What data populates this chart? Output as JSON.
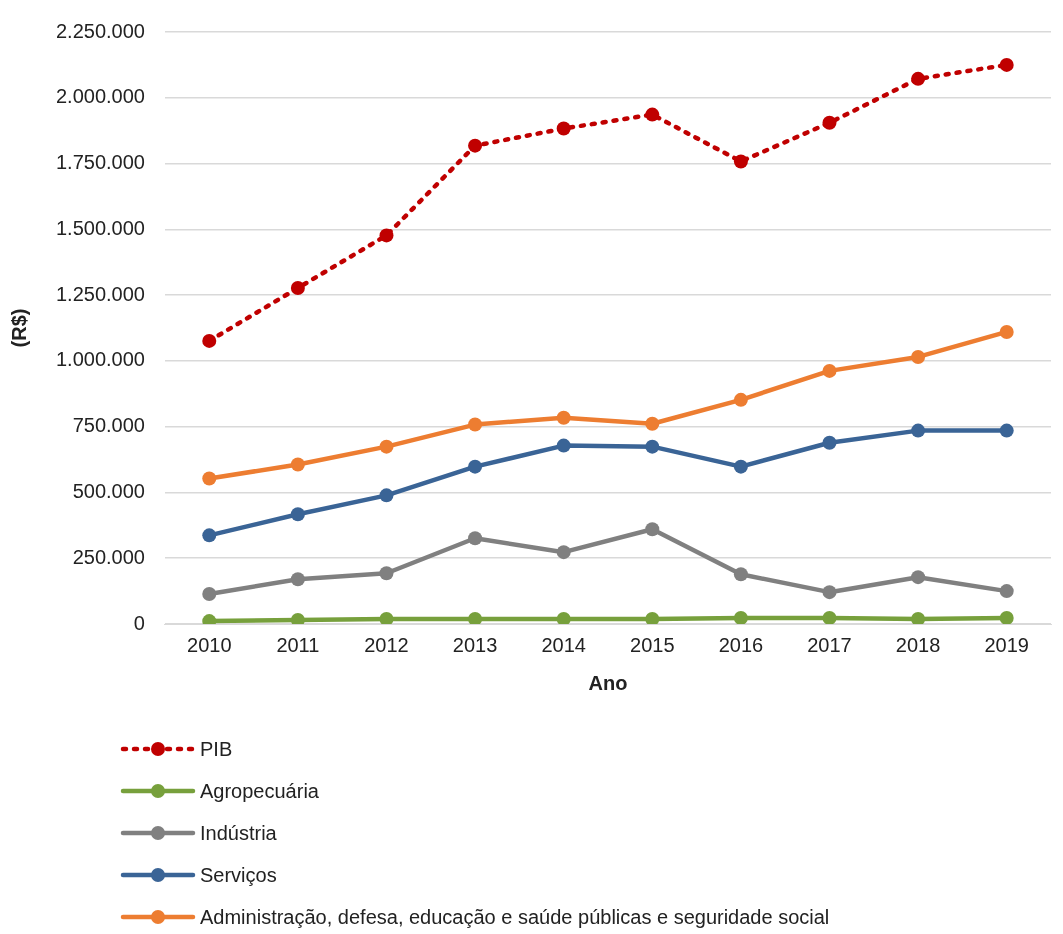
{
  "chart_data": {
    "type": "line",
    "xlabel": "Ano",
    "ylabel": "(R$)",
    "categories": [
      "2010",
      "2011",
      "2012",
      "2013",
      "2014",
      "2015",
      "2016",
      "2017",
      "2018",
      "2019"
    ],
    "ylim": [
      0,
      2250000
    ],
    "yticks": [
      0,
      {
        "value": 250000,
        "label": "250.000"
      },
      {
        "value": 500000,
        "label": "500.000"
      },
      {
        "value": 750000,
        "label": "750.000"
      },
      {
        "value": 1000000,
        "label": "1.000.000"
      },
      {
        "value": 1250000,
        "label": "1.250.000"
      },
      {
        "value": 1500000,
        "label": "1.500.000"
      },
      {
        "value": 1750000,
        "label": "1.750.000"
      },
      {
        "value": 2000000,
        "label": "2.000.000"
      },
      {
        "value": 2250000,
        "label": "2.250.000"
      }
    ],
    "grid": "y",
    "legend": "bottom",
    "marker": "circle",
    "line_style": "solid",
    "series": [
      {
        "name": "PIB",
        "color": "#c00000",
        "line_style": "dotted",
        "values": [
          1076000,
          1277000,
          1477000,
          1818000,
          1883000,
          1936000,
          1758000,
          1905000,
          2072000,
          2125000
        ]
      },
      {
        "name": "Agropecuária",
        "color": "#77a03c",
        "values": [
          11000,
          15000,
          19000,
          19000,
          19000,
          19000,
          23000,
          23000,
          19000,
          23000
        ]
      },
      {
        "name": "Indústria",
        "color": "#808080",
        "values": [
          114000,
          170000,
          193000,
          326000,
          273000,
          360000,
          189000,
          121000,
          178000,
          125000
        ]
      },
      {
        "name": "Serviços",
        "color": "#3a6496",
        "values": [
          337000,
          417000,
          489000,
          598000,
          678000,
          674000,
          598000,
          689000,
          735000,
          735000
        ]
      },
      {
        "name": "Administração, defesa, educação e saúde públicas e seguridade social",
        "color": "#ed7d31",
        "values": [
          553000,
          606000,
          674000,
          758000,
          784000,
          761000,
          852000,
          962000,
          1015000,
          1110000
        ]
      }
    ]
  }
}
